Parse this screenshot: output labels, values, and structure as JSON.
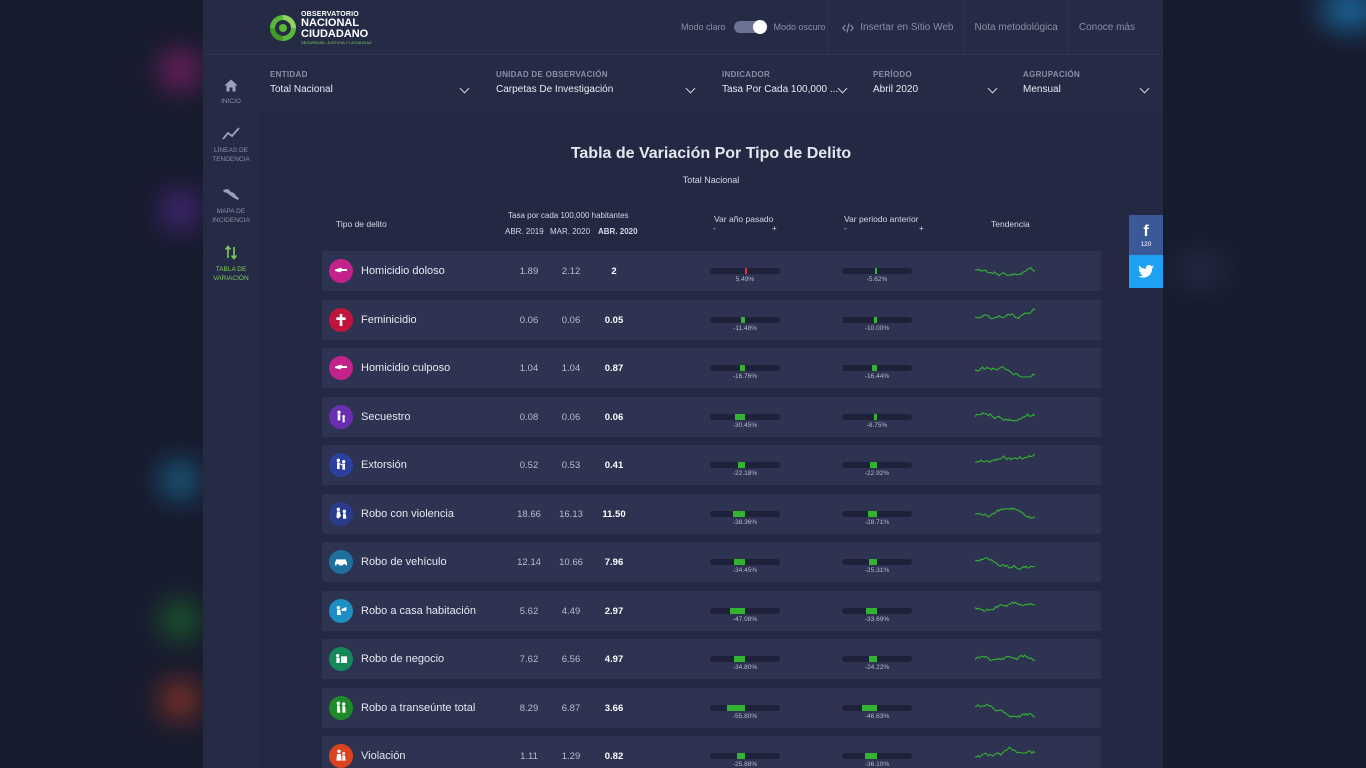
{
  "colors": {
    "accent": "#7dcc5c",
    "bar_green": "#34b233",
    "bar_red": "#e0303a",
    "facebook": "#3b5998",
    "twitter": "#1da1f2"
  },
  "logo": {
    "line1": "OBSERVATORIO",
    "line2": "NACIONAL",
    "line3": "CIUDADANO",
    "line4": "SEGURIDAD, JUSTICIA Y LEGALIDAD"
  },
  "topbar": {
    "mode_light": "Modo claro",
    "mode_dark": "Modo oscuro",
    "embed": "Insertar en Sitio Web",
    "methodology": "Nota metodológica",
    "about": "Conoce más"
  },
  "sidebar": {
    "items": [
      {
        "label": "INICIO",
        "icon": "home-icon"
      },
      {
        "label": "LÍNEAS DE TENDENCIA",
        "icon": "trend-icon"
      },
      {
        "label": "MAPA DE INCIDENCIA",
        "icon": "map-icon"
      },
      {
        "label": "TABLA DE VARIACIÓN",
        "icon": "sort-arrows-icon"
      }
    ]
  },
  "filters": [
    {
      "label": "ENTIDAD",
      "value": "Total Nacional"
    },
    {
      "label": "UNIDAD DE OBSERVACIÓN",
      "value": "Carpetas De Investigación"
    },
    {
      "label": "INDICADOR",
      "value": "Tasa Por Cada 100,000 ..."
    },
    {
      "label": "PERÍODO",
      "value": "Abril 2020"
    },
    {
      "label": "AGRUPACIÓN",
      "value": "Mensual"
    }
  ],
  "table": {
    "title": "Tabla de Variación Por Tipo de Delito",
    "subtitle": "Total Nacional",
    "headers": {
      "type": "Tipo de delito",
      "rate": "Tasa por cada 100,000 habitantes",
      "col1": "ABR. 2019",
      "col2": "MAR. 2020",
      "col3": "ABR. 2020",
      "var_year": "Var año pasado",
      "var_period": "Var periodo anterior",
      "minus": "-",
      "plus": "+",
      "trend": "Tendencia"
    },
    "rows": [
      {
        "name": "Homicidio doloso",
        "icon": "homicide-icon",
        "color": "#c2228a",
        "v1": "1.89",
        "v2": "2.12",
        "v3": "2",
        "var_year": "5.49%",
        "var_year_value": 5.49,
        "var_period": "-5.62%",
        "var_period_value": -5.62
      },
      {
        "name": "Feminicidio",
        "icon": "cross-icon",
        "color": "#c0143c",
        "v1": "0.06",
        "v2": "0.06",
        "v3": "0.05",
        "var_year": "-11.48%",
        "var_year_value": -11.48,
        "var_period": "-10.00%",
        "var_period_value": -10.0
      },
      {
        "name": "Homicidio culposo",
        "icon": "homicide-icon",
        "color": "#c2228a",
        "v1": "1.04",
        "v2": "1.04",
        "v3": "0.87",
        "var_year": "-16.76%",
        "var_year_value": -16.76,
        "var_period": "-16.44%",
        "var_period_value": -16.44
      },
      {
        "name": "Secuestro",
        "icon": "kidnap-icon",
        "color": "#6a2fb0",
        "v1": "0.08",
        "v2": "0.06",
        "v3": "0.06",
        "var_year": "-30.45%",
        "var_year_value": -30.45,
        "var_period": "-8.75%",
        "var_period_value": -8.75
      },
      {
        "name": "Extorsión",
        "icon": "extortion-icon",
        "color": "#2b3f9e",
        "v1": "0.52",
        "v2": "0.53",
        "v3": "0.41",
        "var_year": "-22.18%",
        "var_year_value": -22.18,
        "var_period": "-22.92%",
        "var_period_value": -22.92
      },
      {
        "name": "Robo con violencia",
        "icon": "violent-robbery-icon",
        "color": "#2a3a8c",
        "v1": "18.66",
        "v2": "16.13",
        "v3": "11.50",
        "var_year": "-38.36%",
        "var_year_value": -38.36,
        "var_period": "-28.71%",
        "var_period_value": -28.71
      },
      {
        "name": "Robo de vehículo",
        "icon": "car-icon",
        "color": "#1f6f9e",
        "v1": "12.14",
        "v2": "10.66",
        "v3": "7.96",
        "var_year": "-34.45%",
        "var_year_value": -34.45,
        "var_period": "-25.31%",
        "var_period_value": -25.31
      },
      {
        "name": "Robo a casa habitación",
        "icon": "house-robbery-icon",
        "color": "#1d8fc4",
        "v1": "5.62",
        "v2": "4.49",
        "v3": "2.97",
        "var_year": "-47.08%",
        "var_year_value": -47.08,
        "var_period": "-33.69%",
        "var_period_value": -33.69
      },
      {
        "name": "Robo de negocio",
        "icon": "business-robbery-icon",
        "color": "#148a5a",
        "v1": "7.62",
        "v2": "6.56",
        "v3": "4.97",
        "var_year": "-34.80%",
        "var_year_value": -34.8,
        "var_period": "-24.22%",
        "var_period_value": -24.22
      },
      {
        "name": "Robo a transeúnte total",
        "icon": "pedestrian-robbery-icon",
        "color": "#1f8a2a",
        "v1": "8.29",
        "v2": "6.87",
        "v3": "3.66",
        "var_year": "-55.80%",
        "var_year_value": -55.8,
        "var_period": "-46.63%",
        "var_period_value": -46.63
      },
      {
        "name": "Violación",
        "icon": "violation-icon",
        "color": "#d9431e",
        "v1": "1.11",
        "v2": "1.29",
        "v3": "0.82",
        "var_year": "-25.88%",
        "var_year_value": -25.88,
        "var_period": "-36.10%",
        "var_period_value": -36.1
      }
    ]
  },
  "social": {
    "facebook_icon": "facebook-icon",
    "facebook_count": "120",
    "twitter_icon": "twitter-icon"
  }
}
